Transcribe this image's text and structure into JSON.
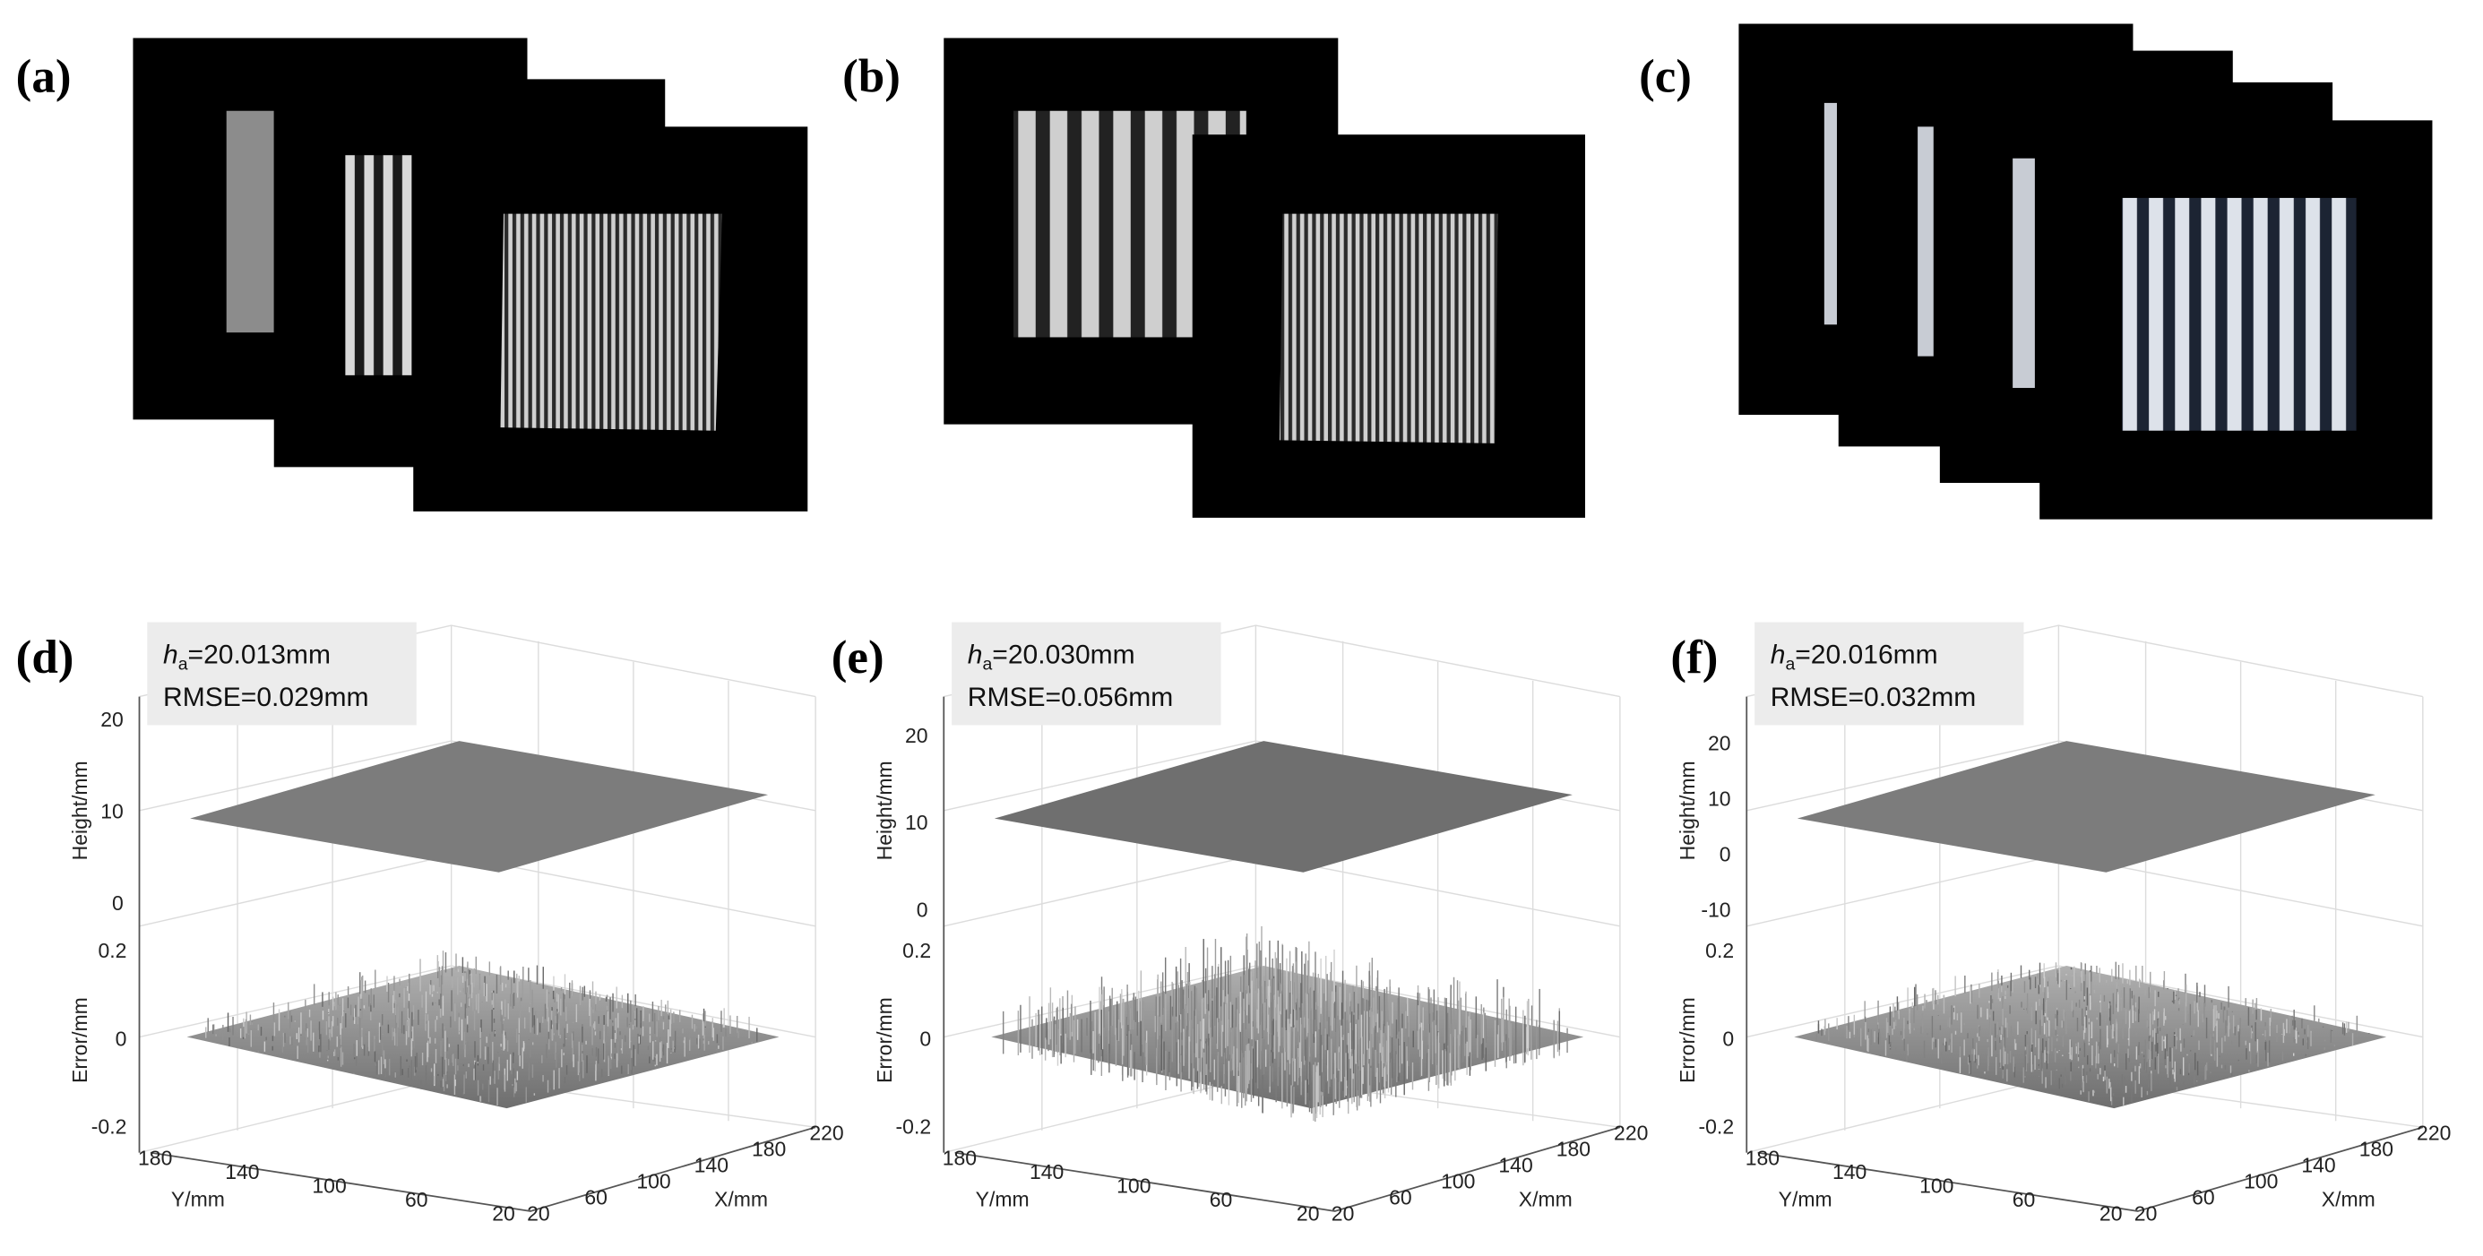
{
  "image_panels": [
    {
      "label": "(a)"
    },
    {
      "label": "(b)"
    },
    {
      "label": "(c)"
    }
  ],
  "plots": [
    {
      "label": "(d)",
      "annotation": {
        "symbol": "h",
        "subscript": "a",
        "height_text": "=20.013mm",
        "rmse_text": "RMSE=0.029mm"
      },
      "height_axis": {
        "title": "Height/mm",
        "ticks": [
          "20",
          "10",
          "0"
        ]
      },
      "error_axis": {
        "title": "Error/mm",
        "ticks": [
          "0.2",
          "0",
          "-0.2"
        ]
      },
      "y_axis": {
        "title": "Y/mm",
        "ticks": [
          "180",
          "140",
          "100",
          "60",
          "20"
        ]
      },
      "x_axis": {
        "title": "X/mm",
        "ticks": [
          "20",
          "60",
          "100",
          "140",
          "180",
          "220"
        ]
      }
    },
    {
      "label": "(e)",
      "annotation": {
        "symbol": "h",
        "subscript": "a",
        "height_text": "=20.030mm",
        "rmse_text": "RMSE=0.056mm"
      },
      "height_axis": {
        "title": "Height/mm",
        "ticks": [
          "20",
          "10",
          "0"
        ]
      },
      "error_axis": {
        "title": "Error/mm",
        "ticks": [
          "0.2",
          "0",
          "-0.2"
        ]
      },
      "y_axis": {
        "title": "Y/mm",
        "ticks": [
          "180",
          "140",
          "100",
          "60",
          "20"
        ]
      },
      "x_axis": {
        "title": "X/mm",
        "ticks": [
          "20",
          "60",
          "100",
          "140",
          "180",
          "220"
        ]
      }
    },
    {
      "label": "(f)",
      "annotation": {
        "symbol": "h",
        "subscript": "a",
        "height_text": "=20.016mm",
        "rmse_text": "RMSE=0.032mm"
      },
      "height_axis": {
        "title": "Height/mm",
        "ticks": [
          "20",
          "10",
          "0",
          "-10"
        ]
      },
      "error_axis": {
        "title": "Error/mm",
        "ticks": [
          "0.2",
          "0",
          "-0.2"
        ]
      },
      "y_axis": {
        "title": "Y/mm",
        "ticks": [
          "180",
          "140",
          "100",
          "60",
          "20"
        ]
      },
      "x_axis": {
        "title": "X/mm",
        "ticks": [
          "20",
          "60",
          "100",
          "140",
          "180",
          "220"
        ]
      }
    }
  ]
}
